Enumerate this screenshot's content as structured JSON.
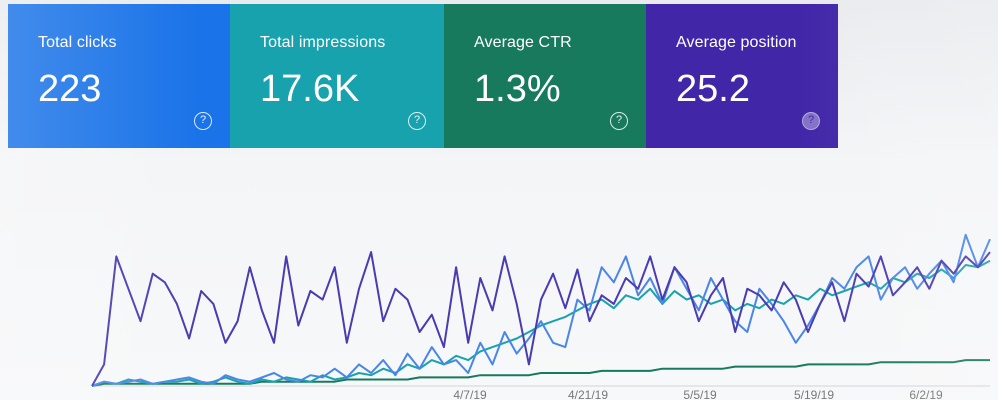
{
  "metrics": [
    {
      "label": "Total clicks",
      "value": "223",
      "color": "#1a73e8",
      "icon": "help-icon"
    },
    {
      "label": "Total impressions",
      "value": "17.6K",
      "color": "#17a2ae",
      "icon": "help-icon"
    },
    {
      "label": "Average CTR",
      "value": "1.3%",
      "color": "#177a5c",
      "icon": "help-icon"
    },
    {
      "label": "Average position",
      "value": "25.2",
      "color": "#4127a8",
      "icon": "help-icon"
    }
  ],
  "help_glyph": "?",
  "chart_data": {
    "type": "line",
    "x_ticks": [
      "4/7/19",
      "4/21/19",
      "5/5/19",
      "5/19/19",
      "6/2/19"
    ],
    "series": [
      {
        "color": "#4a3bb0",
        "values": [
          0,
          10,
          60,
          45,
          30,
          52,
          48,
          38,
          22,
          44,
          38,
          20,
          30,
          55,
          35,
          20,
          60,
          28,
          44,
          40,
          55,
          20,
          45,
          62,
          30,
          45,
          40,
          25,
          33,
          18,
          55,
          20,
          50,
          35,
          60,
          38,
          10,
          40,
          52,
          36,
          54,
          30,
          42,
          38,
          50,
          45,
          60,
          40,
          55,
          48,
          30,
          42,
          50,
          25,
          45,
          42,
          35,
          48,
          40,
          25,
          38,
          48,
          30,
          52,
          46,
          60,
          42,
          48,
          55,
          45,
          58,
          52,
          60,
          55,
          62
        ]
      },
      {
        "color": "#4a86e8",
        "values": [
          0,
          2,
          1,
          2,
          3,
          1,
          2,
          3,
          4,
          2,
          1,
          5,
          3,
          2,
          4,
          6,
          3,
          2,
          5,
          4,
          8,
          4,
          10,
          6,
          12,
          5,
          15,
          8,
          18,
          10,
          12,
          6,
          20,
          10,
          25,
          15,
          22,
          30,
          20,
          18,
          40,
          35,
          55,
          48,
          60,
          42,
          50,
          38,
          55,
          45,
          35,
          50,
          40,
          30,
          25,
          45,
          38,
          30,
          20,
          28,
          38,
          50,
          45,
          55,
          60,
          40,
          50,
          55,
          45,
          52,
          58,
          48,
          70,
          55,
          68
        ]
      },
      {
        "color": "#17a2ae",
        "values": [
          0,
          2,
          1,
          3,
          2,
          1,
          2,
          2,
          3,
          1,
          2,
          4,
          2,
          1,
          3,
          2,
          4,
          3,
          2,
          5,
          3,
          4,
          6,
          5,
          8,
          6,
          10,
          8,
          12,
          10,
          14,
          12,
          16,
          18,
          20,
          22,
          25,
          28,
          30,
          32,
          35,
          38,
          40,
          36,
          42,
          40,
          45,
          38,
          44,
          40,
          42,
          38,
          40,
          35,
          38,
          36,
          40,
          38,
          42,
          40,
          45,
          42,
          44,
          46,
          48,
          45,
          50,
          48,
          52,
          50,
          54,
          50,
          56,
          55,
          58
        ]
      },
      {
        "color": "#177a5c",
        "values": [
          0,
          1,
          1,
          1,
          1,
          1,
          1,
          1,
          1,
          1,
          1,
          1,
          1,
          1,
          2,
          2,
          2,
          2,
          2,
          2,
          2,
          3,
          3,
          3,
          3,
          3,
          3,
          4,
          4,
          4,
          4,
          4,
          5,
          5,
          5,
          5,
          5,
          6,
          6,
          6,
          6,
          6,
          7,
          7,
          7,
          7,
          7,
          8,
          8,
          8,
          8,
          8,
          8,
          9,
          9,
          9,
          9,
          9,
          9,
          10,
          10,
          10,
          10,
          10,
          10,
          11,
          11,
          11,
          11,
          11,
          11,
          11,
          12,
          12,
          12
        ]
      }
    ],
    "ylim": [
      0,
      100
    ],
    "grid": false,
    "legend": "none"
  }
}
